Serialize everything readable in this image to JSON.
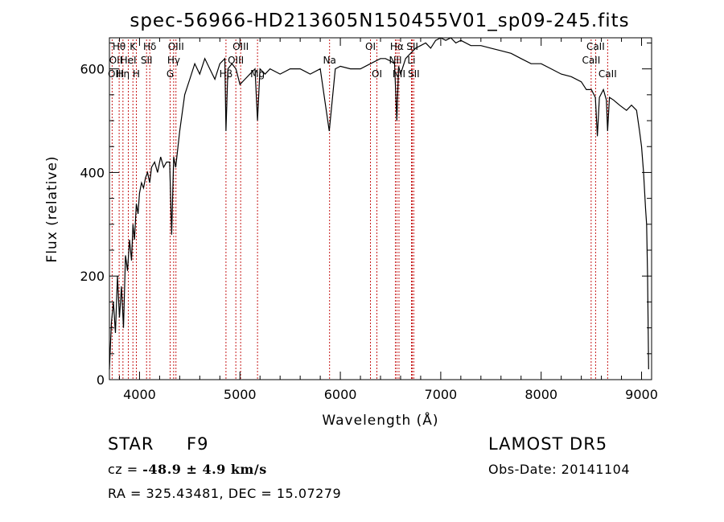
{
  "chart_data": {
    "type": "line",
    "title": "spec-56966-HD213605N150455V01_sp09-245.fits",
    "xlabel": "Wavelength (Å)",
    "ylabel": "Flux (relative)",
    "xlim": [
      3700,
      9100
    ],
    "ylim": [
      0,
      660
    ],
    "x_ticks": [
      4000,
      5000,
      6000,
      7000,
      8000,
      9000
    ],
    "y_ticks": [
      0,
      200,
      400,
      600
    ],
    "grid": false,
    "series": [
      {
        "color": "#000000",
        "x": [
          3700,
          3720,
          3740,
          3760,
          3780,
          3800,
          3820,
          3840,
          3860,
          3880,
          3900,
          3920,
          3935,
          3950,
          3968,
          3985,
          4000,
          4020,
          4040,
          4060,
          4080,
          4101,
          4120,
          4150,
          4180,
          4210,
          4240,
          4270,
          4300,
          4320,
          4340,
          4360,
          4400,
          4450,
          4500,
          4550,
          4600,
          4650,
          4700,
          4750,
          4800,
          4850,
          4861,
          4880,
          4920,
          4960,
          5000,
          5050,
          5100,
          5150,
          5175,
          5200,
          5250,
          5300,
          5400,
          5500,
          5600,
          5700,
          5800,
          5890,
          5950,
          6000,
          6100,
          6200,
          6300,
          6400,
          6450,
          6500,
          6540,
          6563,
          6580,
          6600,
          6650,
          6700,
          6750,
          6800,
          6850,
          6900,
          6950,
          7000,
          7050,
          7100,
          7150,
          7200,
          7300,
          7400,
          7500,
          7600,
          7700,
          7800,
          7900,
          8000,
          8100,
          8200,
          8300,
          8400,
          8450,
          8500,
          8540,
          8560,
          8580,
          8620,
          8650,
          8662,
          8680,
          8720,
          8780,
          8850,
          8900,
          8950,
          8980,
          9000,
          9020,
          9040,
          9050,
          9060,
          9070
        ],
        "y": [
          20,
          110,
          150,
          90,
          200,
          120,
          180,
          100,
          240,
          210,
          270,
          230,
          300,
          270,
          340,
          320,
          360,
          380,
          370,
          390,
          400,
          380,
          410,
          420,
          400,
          430,
          410,
          420,
          420,
          280,
          430,
          410,
          480,
          550,
          580,
          610,
          590,
          620,
          600,
          580,
          610,
          620,
          480,
          600,
          610,
          600,
          570,
          580,
          590,
          600,
          500,
          600,
          590,
          600,
          590,
          600,
          600,
          590,
          600,
          480,
          600,
          605,
          600,
          600,
          610,
          620,
          620,
          615,
          610,
          500,
          605,
          590,
          620,
          630,
          640,
          645,
          650,
          640,
          655,
          660,
          655,
          660,
          650,
          655,
          645,
          645,
          640,
          635,
          630,
          620,
          610,
          610,
          600,
          590,
          585,
          575,
          560,
          560,
          545,
          470,
          545,
          560,
          540,
          480,
          545,
          540,
          530,
          520,
          530,
          520,
          480,
          450,
          400,
          330,
          300,
          200,
          20
        ]
      }
    ],
    "line_markers": [
      {
        "label": "Hθ",
        "x": 3797,
        "row": 0
      },
      {
        "label": "OII",
        "x": 3727,
        "row": 1
      },
      {
        "label": "OIII",
        "x": 3700,
        "row": 2
      },
      {
        "label": "Hη",
        "x": 3835,
        "row": 2
      },
      {
        "label": "HeI",
        "x": 3889,
        "row": 1
      },
      {
        "label": "K",
        "x": 3934,
        "row": 0
      },
      {
        "label": "H",
        "x": 3968,
        "row": 2
      },
      {
        "label": "SII",
        "x": 4070,
        "row": 1
      },
      {
        "label": "Hδ",
        "x": 4102,
        "row": 0
      },
      {
        "label": "OIII",
        "x": 4363,
        "row": 0
      },
      {
        "label": "Hγ",
        "x": 4340,
        "row": 1
      },
      {
        "label": "G",
        "x": 4305,
        "row": 2
      },
      {
        "label": "Hβ",
        "x": 4861,
        "row": 2
      },
      {
        "label": "OIII",
        "x": 4959,
        "row": 1
      },
      {
        "label": "OIII",
        "x": 5007,
        "row": 0
      },
      {
        "label": "Mg",
        "x": 5175,
        "row": 2
      },
      {
        "label": "Na",
        "x": 5893,
        "row": 1
      },
      {
        "label": "OI",
        "x": 6300,
        "row": 0
      },
      {
        "label": "OI",
        "x": 6364,
        "row": 2
      },
      {
        "label": "Hα",
        "x": 6563,
        "row": 0
      },
      {
        "label": "NII",
        "x": 6548,
        "row": 1
      },
      {
        "label": "NII",
        "x": 6584,
        "row": 2
      },
      {
        "label": "SII",
        "x": 6717,
        "row": 0
      },
      {
        "label": "Li",
        "x": 6708,
        "row": 1
      },
      {
        "label": "SII",
        "x": 6731,
        "row": 2
      },
      {
        "label": "CaII",
        "x": 8542,
        "row": 0
      },
      {
        "label": "CaII",
        "x": 8498,
        "row": 1
      },
      {
        "label": "CaII",
        "x": 8662,
        "row": 2
      }
    ]
  },
  "info": {
    "object_class": "STAR",
    "subclass": "F9",
    "survey": "LAMOST DR5",
    "cz_label": "cz = ",
    "cz_value": "-48.9 ± 4.9 km/s",
    "obs_date": "Obs-Date: 20141104",
    "coords": "RA = 325.43481, DEC =  15.07279"
  }
}
